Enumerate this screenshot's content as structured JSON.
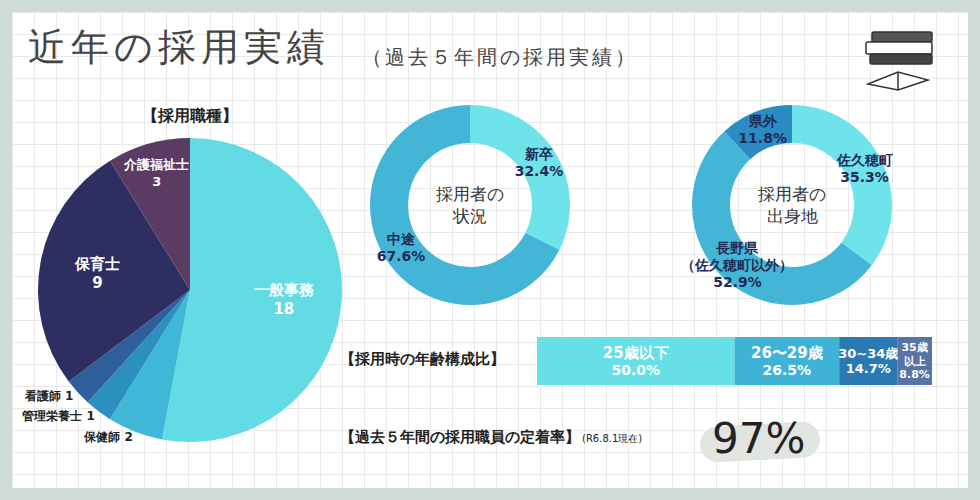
{
  "title": "近年の採用実績",
  "subtitle": "（過去５年間の採用実績）",
  "chart_data": [
    {
      "type": "pie",
      "title": "【採用職種】",
      "categories": [
        "一般事務",
        "保健師",
        "管理栄養士",
        "看護師",
        "保育士",
        "介護福祉士"
      ],
      "values": [
        18,
        2,
        1,
        1,
        9,
        3
      ],
      "colors": [
        "#62dbe4",
        "#3fb8d8",
        "#2b8fc0",
        "#2e5f9c",
        "#2e2e62",
        "#5b3a64"
      ],
      "data_labels": true
    },
    {
      "type": "donut",
      "title": "採用者の状況",
      "categories": [
        "新卒",
        "中途"
      ],
      "values": [
        32.4,
        67.6
      ],
      "value_labels": [
        "32.4%",
        "67.6%"
      ],
      "colors": [
        "#6ee3ea",
        "#43b6d8"
      ],
      "data_labels": true
    },
    {
      "type": "donut",
      "title": "採用者の出身地",
      "categories": [
        "佐久穂町",
        "長野県（佐久穂町以外）",
        "県外"
      ],
      "values": [
        35.3,
        52.9,
        11.8
      ],
      "value_labels": [
        "35.3%",
        "52.9%",
        "11.8%"
      ],
      "colors": [
        "#6ee3ea",
        "#43b6d8",
        "#2a8cc2"
      ],
      "data_labels": true
    },
    {
      "type": "bar",
      "title": "【採用時の年齢構成比】",
      "orientation": "horizontal",
      "stacked": true,
      "tick_labels": false,
      "data_labels": true,
      "categories": [
        null
      ],
      "series": [
        {
          "name": "25歳以下",
          "color": "#66dfe6",
          "values": [
            50.0
          ],
          "value_labels": [
            "50.0%"
          ]
        },
        {
          "name": "26〜29歳",
          "color": "#3fb3d6",
          "values": [
            26.5
          ],
          "value_labels": [
            "26.5%"
          ]
        },
        {
          "name": "30~34歳",
          "color": "#2b79b3",
          "values": [
            14.7
          ],
          "value_labels": [
            "14.7%"
          ]
        },
        {
          "name": "35歳以上",
          "color": "#5873a6",
          "values": [
            8.8
          ],
          "value_labels": [
            "8.8%"
          ]
        }
      ]
    }
  ],
  "retention": {
    "label": "【過去５年間の採用職員の定着率】",
    "note": "(R6.8.1現在)",
    "value_label": "97%"
  }
}
